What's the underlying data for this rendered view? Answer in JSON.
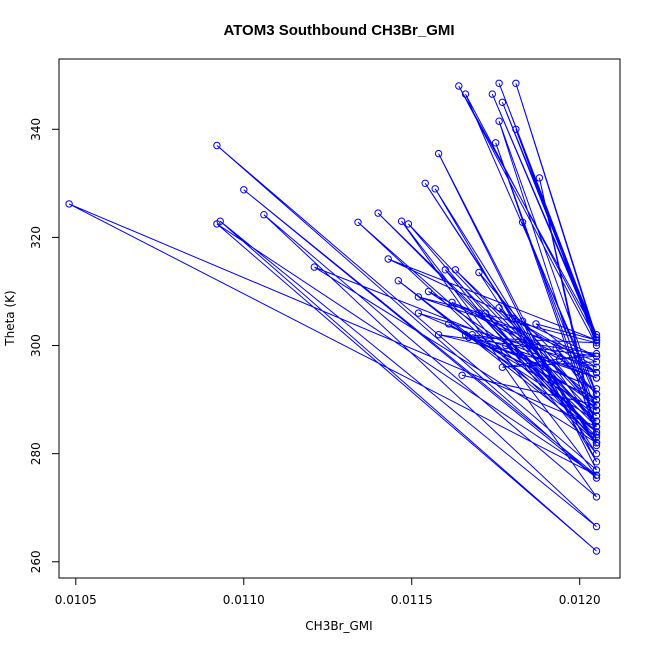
{
  "chart_data": {
    "type": "line",
    "title": "ATOM3 Southbound CH3Br_GMI",
    "xlabel": "CH3Br_GMI",
    "ylabel": "Theta (K)",
    "xlim": [
      0.01045,
      0.01212
    ],
    "ylim": [
      257,
      353
    ],
    "x_ticks": [
      0.0105,
      0.011,
      0.0115,
      0.012
    ],
    "x_tick_labels": [
      "0.0105",
      "0.0110",
      "0.0115",
      "0.0120"
    ],
    "y_ticks": [
      260,
      280,
      300,
      320,
      340
    ],
    "y_tick_labels": [
      "260",
      "280",
      "300",
      "320",
      "340"
    ],
    "grid": false,
    "legend": "none",
    "series": [
      {
        "color": "#0000ff",
        "marker": "open-circle",
        "x": [
          0.01205,
          0.01181,
          0.01205,
          0.01176,
          0.01205,
          0.01174,
          0.01205,
          0.01177,
          0.01205,
          0.01164,
          0.01205,
          0.01181,
          0.01205,
          0.01166,
          0.01205,
          0.01176,
          0.01205,
          0.01175,
          0.01205,
          0.01188,
          0.01205,
          0.01154,
          0.01205,
          0.01157,
          0.01205,
          0.01158,
          0.01205,
          0.01092,
          0.01205,
          0.011,
          0.01205,
          0.01147,
          0.01205,
          0.01106,
          0.01205,
          0.01093,
          0.01205,
          0.01092,
          0.01205,
          0.01048,
          0.01205,
          0.0114,
          0.01205,
          0.01134,
          0.01205,
          0.01149,
          0.01205,
          0.0116,
          0.01205,
          0.0117,
          0.01205,
          0.01183,
          0.01205,
          0.01167,
          0.01205,
          0.01152,
          0.01205,
          0.01143,
          0.01205,
          0.01187,
          0.01205,
          0.01162,
          0.01205,
          0.01177,
          0.01205,
          0.01168,
          0.01205,
          0.01155,
          0.01205,
          0.01163,
          0.01205,
          0.01178,
          0.01205,
          0.01146,
          0.01205,
          0.01172,
          0.01205,
          0.01166,
          0.01205,
          0.01152,
          0.01205,
          0.0118,
          0.01205,
          0.01158,
          0.01205,
          0.01194,
          0.01205,
          0.01121,
          0.01205,
          0.0117,
          0.01205,
          0.01161,
          0.01205,
          0.01176,
          0.01205,
          0.01183,
          0.01205,
          0.01193,
          0.01205,
          0.01165
        ],
        "y": [
          301.5,
          348.5,
          301,
          348.5,
          301.5,
          346.5,
          301,
          345,
          302,
          348,
          300,
          340,
          301,
          346.5,
          291,
          341.5,
          285,
          337.5,
          283.5,
          331,
          282,
          330,
          281.5,
          329,
          278.5,
          335.5,
          277,
          337,
          275.5,
          328.8,
          276,
          323,
          272,
          324.2,
          266.5,
          323,
          262,
          322.5,
          276,
          326.2,
          285,
          324.5,
          284,
          322.8,
          282,
          322.5,
          286,
          314,
          280,
          313.5,
          288,
          322.8,
          290,
          301.5,
          300.5,
          309,
          298,
          316,
          301,
          304,
          295,
          308,
          297,
          296,
          298.5,
          302,
          294,
          310,
          289,
          314,
          287,
          300,
          284,
          312,
          283,
          306,
          290,
          302,
          292,
          306,
          296,
          305,
          295,
          302,
          298,
          297.5,
          294,
          314.5,
          282,
          306,
          286,
          304,
          288,
          307,
          285,
          304.5,
          291,
          299.5,
          289,
          294.5
        ]
      }
    ]
  }
}
